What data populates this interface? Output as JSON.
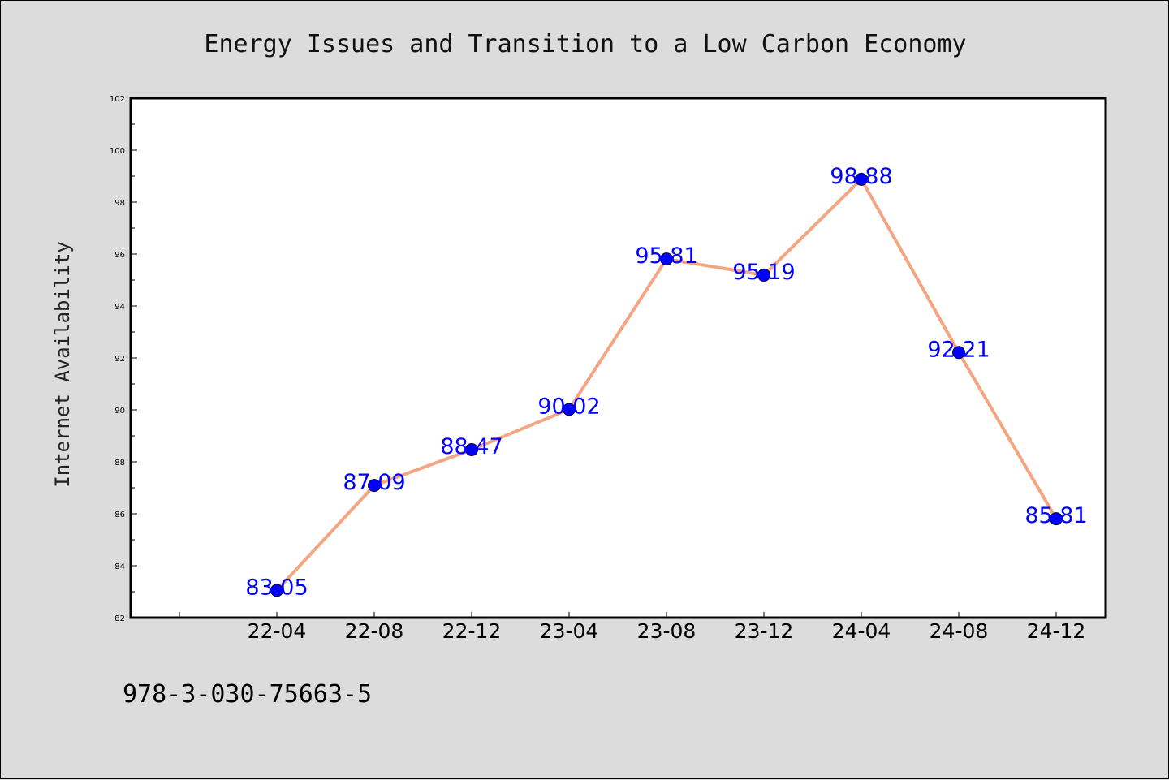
{
  "chart_data": {
    "type": "line",
    "title": "Energy Issues and Transition to a Low Carbon Economy",
    "xlabel": "",
    "ylabel": "Internet Availability",
    "categories": [
      "22-04",
      "22-08",
      "22-12",
      "23-04",
      "23-08",
      "23-12",
      "24-04",
      "24-08",
      "24-12"
    ],
    "values": [
      83.05,
      87.09,
      88.47,
      90.02,
      95.81,
      95.19,
      98.88,
      92.21,
      85.81
    ],
    "data_labels": [
      "83.05",
      "87.09",
      "88.47",
      "90.02",
      "95.81",
      "95.19",
      "98.88",
      "92.21",
      "85.81"
    ],
    "ylim": [
      82,
      102
    ],
    "yticks": [
      "82",
      "84",
      "86",
      "88",
      "90",
      "92",
      "94",
      "96",
      "98",
      "100",
      "102"
    ],
    "grid": false,
    "line_color": "#f4a582",
    "marker_color": "#0000ff",
    "label_color": "#0000ff"
  },
  "footer": {
    "text": "978-3-030-75663-5"
  }
}
